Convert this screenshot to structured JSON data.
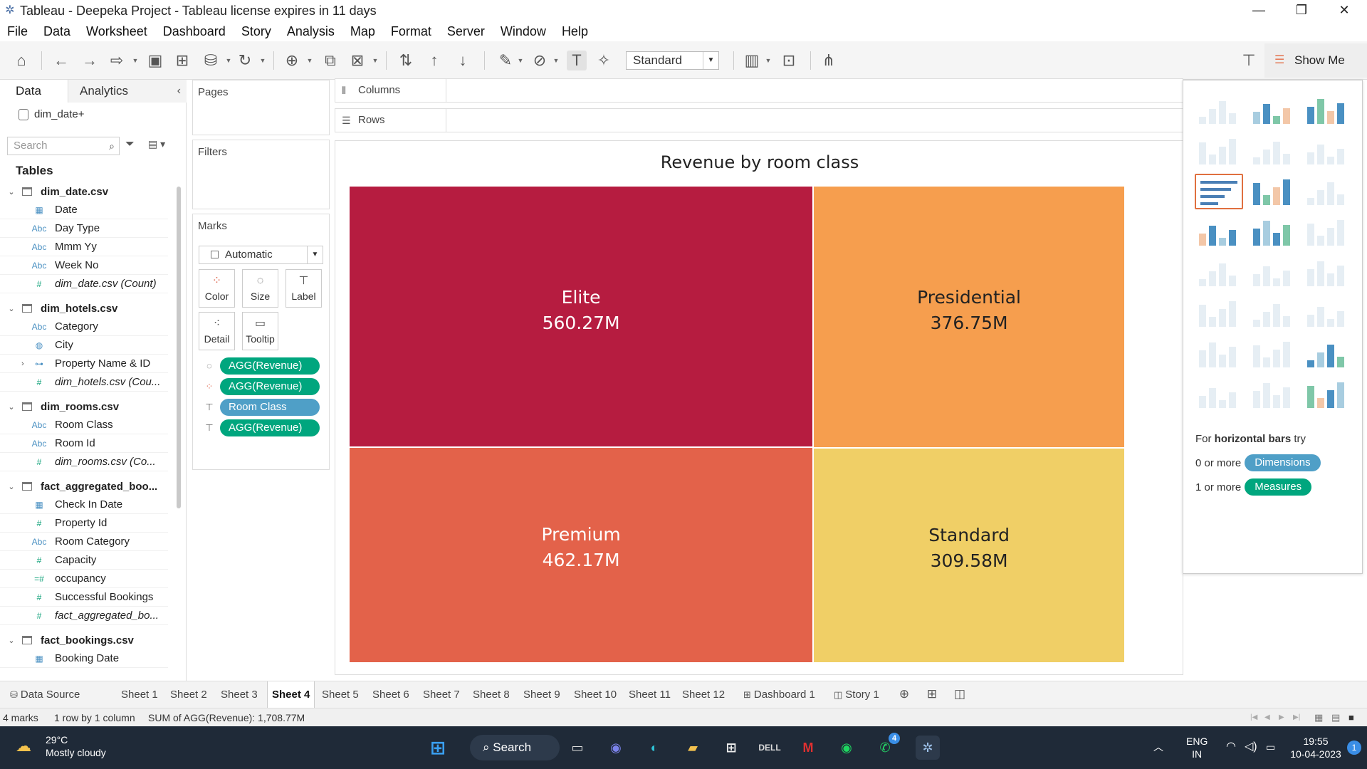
{
  "window": {
    "title": "Tableau - Deepeka Project - Tableau license expires in 11 days",
    "app_icon": "tableau-icon",
    "controls": [
      "minimize",
      "restore",
      "close"
    ]
  },
  "menu": [
    "File",
    "Data",
    "Worksheet",
    "Dashboard",
    "Story",
    "Analysis",
    "Map",
    "Format",
    "Server",
    "Window",
    "Help"
  ],
  "toolbar": {
    "fit_value": "Standard",
    "show_me_label": "Show Me"
  },
  "data_pane": {
    "tabs": [
      "Data",
      "Analytics"
    ],
    "datasource": "dim_date+",
    "search_placeholder": "Search",
    "tables_label": "Tables",
    "tables": [
      {
        "name": "dim_date.csv",
        "fields": [
          {
            "label": "Date",
            "icon": "calendar-icon",
            "kind": "dim"
          },
          {
            "label": "Day Type",
            "icon": "Abc",
            "kind": "dim"
          },
          {
            "label": "Mmm Yy",
            "icon": "Abc",
            "kind": "dim"
          },
          {
            "label": "Week No",
            "icon": "Abc",
            "kind": "dim"
          },
          {
            "label": "dim_date.csv (Count)",
            "icon": "#",
            "kind": "mea",
            "italic": true
          }
        ]
      },
      {
        "name": "dim_hotels.csv",
        "fields": [
          {
            "label": "Category",
            "icon": "Abc",
            "kind": "dim"
          },
          {
            "label": "City",
            "icon": "globe-icon",
            "kind": "dim"
          },
          {
            "label": "Property Name & ID",
            "icon": "hierarchy-icon",
            "kind": "dim",
            "expandable": true
          },
          {
            "label": "dim_hotels.csv (Cou...",
            "icon": "#",
            "kind": "mea",
            "italic": true
          }
        ]
      },
      {
        "name": "dim_rooms.csv",
        "fields": [
          {
            "label": "Room Class",
            "icon": "Abc",
            "kind": "dim"
          },
          {
            "label": "Room Id",
            "icon": "Abc",
            "kind": "dim"
          },
          {
            "label": "dim_rooms.csv (Co...",
            "icon": "#",
            "kind": "mea",
            "italic": true
          }
        ]
      },
      {
        "name": "fact_aggregated_boo...",
        "fields": [
          {
            "label": "Check In Date",
            "icon": "calendar-icon",
            "kind": "dim"
          },
          {
            "label": "Property Id",
            "icon": "#",
            "kind": "mea"
          },
          {
            "label": "Room Category",
            "icon": "Abc",
            "kind": "dim"
          },
          {
            "label": "Capacity",
            "icon": "#",
            "kind": "mea"
          },
          {
            "label": "occupancy",
            "icon": "=#",
            "kind": "mea"
          },
          {
            "label": "Successful Bookings",
            "icon": "#",
            "kind": "mea"
          },
          {
            "label": "fact_aggregated_bo...",
            "icon": "#",
            "kind": "mea",
            "italic": true
          }
        ]
      },
      {
        "name": "fact_bookings.csv",
        "fields": [
          {
            "label": "Booking Date",
            "icon": "calendar-icon",
            "kind": "dim"
          }
        ]
      }
    ]
  },
  "cards": {
    "pages": "Pages",
    "filters": "Filters",
    "marks": "Marks",
    "mark_type": "Automatic",
    "mark_buttons": [
      {
        "label": "Color",
        "icon": "color-icon"
      },
      {
        "label": "Size",
        "icon": "size-icon"
      },
      {
        "label": "Label",
        "icon": "label-icon"
      },
      {
        "label": "Detail",
        "icon": "detail-icon"
      },
      {
        "label": "Tooltip",
        "icon": "tooltip-icon"
      }
    ],
    "mark_pills": [
      {
        "label": "AGG(Revenue)",
        "kind": "measure",
        "icon": "size-icon"
      },
      {
        "label": "AGG(Revenue)",
        "kind": "measure",
        "icon": "color-icon"
      },
      {
        "label": "Room Class",
        "kind": "dimension",
        "icon": "label-icon"
      },
      {
        "label": "AGG(Revenue)",
        "kind": "measure",
        "icon": "label-icon"
      }
    ]
  },
  "shelves": {
    "columns": "Columns",
    "rows": "Rows"
  },
  "chart_data": {
    "type": "treemap",
    "title": "Revenue by room class",
    "unit": "M",
    "categories": [
      "Elite",
      "Premium",
      "Presidential",
      "Standard"
    ],
    "values": [
      560.27,
      462.17,
      376.75,
      309.58
    ],
    "labels": [
      "560.27M",
      "462.17M",
      "376.75M",
      "309.58M"
    ],
    "colors": [
      "#b61c40",
      "#e3624a",
      "#f69e4e",
      "#f0cf66"
    ],
    "text_colors": [
      "#ffffff",
      "#ffffff",
      "#222222",
      "#222222"
    ]
  },
  "show_me": {
    "hint_prefix": "For ",
    "hint_bold": "horizontal bars",
    "hint_suffix": " try",
    "req1_prefix": "0 or more",
    "req1_chip": "Dimensions",
    "req2_prefix": "1 or more",
    "req2_chip": "Measures",
    "active_index": 6
  },
  "sheet_tabs": {
    "data_source": "Data Source",
    "sheets": [
      "Sheet 1",
      "Sheet 2",
      "Sheet 3",
      "Sheet 4",
      "Sheet 5",
      "Sheet 6",
      "Sheet 7",
      "Sheet 8",
      "Sheet 9",
      "Sheet 10",
      "Sheet 11",
      "Sheet 12"
    ],
    "active": "Sheet 4",
    "dashboard": "Dashboard 1",
    "story": "Story 1"
  },
  "status": {
    "marks": "4 marks",
    "dims": "1 row by 1 column",
    "sum": "SUM of AGG(Revenue): 1,708.77M"
  },
  "taskbar": {
    "temp": "29°C",
    "weather": "Mostly cloudy",
    "search": "Search",
    "whatsapp_badge": "4",
    "lang1": "ENG",
    "lang2": "IN",
    "time": "19:55",
    "date": "10-04-2023",
    "notif_badge": "1"
  }
}
